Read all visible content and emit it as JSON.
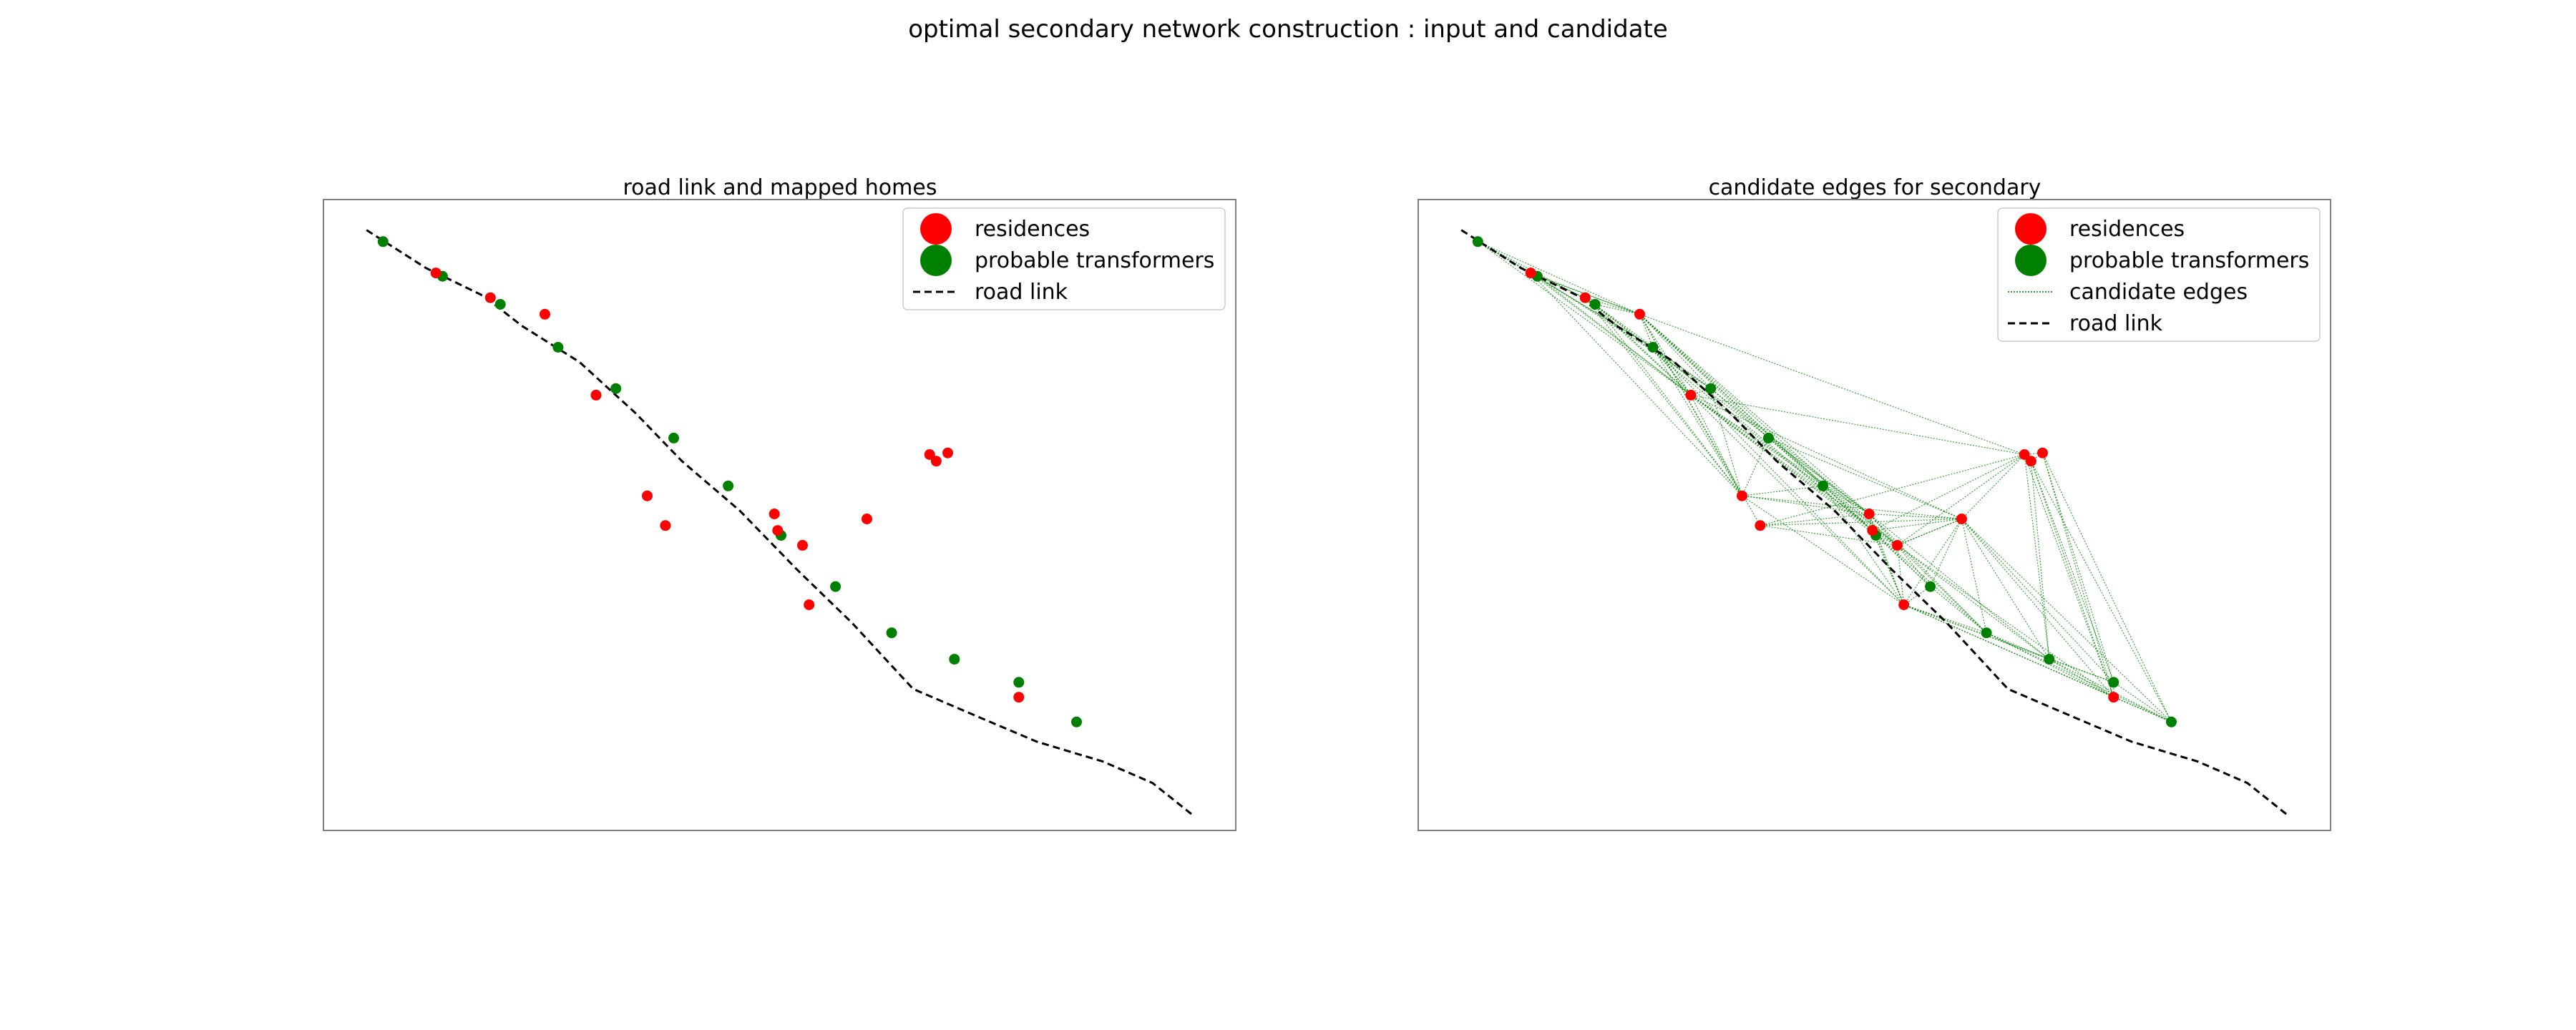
{
  "figure": {
    "suptitle": "optimal secondary network construction : input and candidate"
  },
  "colors": {
    "residence": "#ff0000",
    "transformer": "#008000",
    "road": "#000000",
    "candidate_edge": "#008000",
    "axes_frame": "#808080"
  },
  "chart_data": [
    {
      "type": "scatter",
      "title": "road link and mapped homes",
      "xlabel": "",
      "ylabel": "",
      "grid": false,
      "legend_position": "top-right",
      "legend": [
        "residences",
        "probable transformers",
        "road link"
      ],
      "series": [
        {
          "name": "residences",
          "kind": "points",
          "ref": "residences"
        },
        {
          "name": "probable transformers",
          "kind": "points",
          "ref": "transformers"
        },
        {
          "name": "road link",
          "kind": "dashed-line",
          "ref": "road"
        }
      ]
    },
    {
      "type": "scatter",
      "title": "candidate edges for secondary",
      "xlabel": "",
      "ylabel": "",
      "grid": false,
      "legend_position": "top-right",
      "legend": [
        "residences",
        "probable transformers",
        "candidate edges",
        "road link"
      ],
      "series": [
        {
          "name": "residences",
          "kind": "points",
          "ref": "residences"
        },
        {
          "name": "probable transformers",
          "kind": "points",
          "ref": "transformers"
        },
        {
          "name": "candidate edges",
          "kind": "dotted-lines",
          "ref": "edges"
        },
        {
          "name": "road link",
          "kind": "dashed-line",
          "ref": "road"
        }
      ]
    }
  ],
  "data_points": {
    "road": [
      [
        4,
        2
      ],
      [
        40,
        25
      ],
      [
        75,
        42
      ],
      [
        98,
        60
      ],
      [
        133,
        82
      ],
      [
        167,
        113
      ],
      [
        195,
        142
      ],
      [
        230,
        172
      ],
      [
        265,
        208
      ],
      [
        298,
        240
      ],
      [
        335,
        280
      ],
      [
        370,
        295
      ],
      [
        410,
        312
      ],
      [
        450,
        324
      ],
      [
        480,
        337
      ],
      [
        505,
        357
      ]
    ],
    "transformers": [
      [
        14,
        9
      ],
      [
        50,
        30
      ],
      [
        85,
        47
      ],
      [
        120,
        73
      ],
      [
        155,
        98
      ],
      [
        190,
        128
      ],
      [
        223,
        157
      ],
      [
        255,
        187
      ],
      [
        288,
        218
      ],
      [
        322,
        246
      ],
      [
        360,
        262
      ],
      [
        399,
        276
      ],
      [
        434,
        300
      ]
    ],
    "residences": [
      [
        46,
        28
      ],
      [
        79,
        43
      ],
      [
        112,
        53
      ],
      [
        143,
        102
      ],
      [
        174,
        163
      ],
      [
        185,
        181
      ],
      [
        251,
        174
      ],
      [
        253,
        184
      ],
      [
        268,
        193
      ],
      [
        272,
        229
      ],
      [
        307,
        177
      ],
      [
        345,
        138
      ],
      [
        349,
        142
      ],
      [
        356,
        137
      ],
      [
        399,
        285
      ]
    ],
    "edges": [
      [
        14,
        9,
        112,
        53
      ],
      [
        14,
        9,
        143,
        102
      ],
      [
        14,
        9,
        50,
        30
      ],
      [
        14,
        9,
        46,
        28
      ],
      [
        50,
        30,
        112,
        53
      ],
      [
        46,
        28,
        112,
        53
      ],
      [
        79,
        43,
        112,
        53
      ],
      [
        85,
        47,
        112,
        53
      ],
      [
        112,
        53,
        120,
        73
      ],
      [
        112,
        53,
        155,
        98
      ],
      [
        112,
        53,
        143,
        102
      ],
      [
        112,
        53,
        251,
        174
      ],
      [
        112,
        53,
        253,
        184
      ],
      [
        112,
        53,
        268,
        193
      ],
      [
        112,
        53,
        345,
        138
      ],
      [
        112,
        53,
        174,
        163
      ],
      [
        112,
        53,
        223,
        157
      ],
      [
        46,
        28,
        174,
        163
      ],
      [
        46,
        28,
        143,
        102
      ],
      [
        50,
        30,
        143,
        102
      ],
      [
        79,
        43,
        251,
        174
      ],
      [
        79,
        43,
        143,
        102
      ],
      [
        85,
        47,
        143,
        102
      ],
      [
        85,
        47,
        253,
        184
      ],
      [
        120,
        73,
        174,
        163
      ],
      [
        120,
        73,
        143,
        102
      ],
      [
        143,
        102,
        251,
        174
      ],
      [
        143,
        102,
        253,
        184
      ],
      [
        143,
        102,
        268,
        193
      ],
      [
        143,
        102,
        174,
        163
      ],
      [
        143,
        102,
        223,
        157
      ],
      [
        155,
        98,
        251,
        174
      ],
      [
        155,
        98,
        174,
        163
      ],
      [
        143,
        102,
        272,
        229
      ],
      [
        120,
        73,
        272,
        229
      ],
      [
        143,
        102,
        255,
        187
      ],
      [
        143,
        102,
        345,
        138
      ],
      [
        143,
        102,
        307,
        177
      ],
      [
        174,
        163,
        272,
        229
      ],
      [
        174,
        163,
        251,
        174
      ],
      [
        174,
        163,
        307,
        177
      ],
      [
        174,
        163,
        223,
        157
      ],
      [
        174,
        163,
        190,
        128
      ],
      [
        185,
        181,
        251,
        174
      ],
      [
        185,
        181,
        268,
        193
      ],
      [
        185,
        181,
        307,
        177
      ],
      [
        185,
        181,
        345,
        138
      ],
      [
        190,
        128,
        251,
        174
      ],
      [
        190,
        128,
        268,
        193
      ],
      [
        190,
        128,
        307,
        177
      ],
      [
        190,
        128,
        223,
        157
      ],
      [
        223,
        157,
        251,
        174
      ],
      [
        223,
        157,
        253,
        184
      ],
      [
        223,
        157,
        268,
        193
      ],
      [
        223,
        157,
        272,
        229
      ],
      [
        251,
        174,
        253,
        184
      ],
      [
        251,
        174,
        268,
        193
      ],
      [
        251,
        174,
        307,
        177
      ],
      [
        251,
        174,
        272,
        229
      ],
      [
        251,
        174,
        322,
        246
      ],
      [
        251,
        174,
        360,
        262
      ],
      [
        253,
        184,
        255,
        187
      ],
      [
        253,
        184,
        268,
        193
      ],
      [
        253,
        184,
        272,
        229
      ],
      [
        253,
        184,
        288,
        218
      ],
      [
        253,
        184,
        322,
        246
      ],
      [
        253,
        184,
        307,
        177
      ],
      [
        255,
        187,
        268,
        193
      ],
      [
        255,
        187,
        272,
        229
      ],
      [
        255,
        187,
        288,
        218
      ],
      [
        268,
        193,
        307,
        177
      ],
      [
        268,
        193,
        272,
        229
      ],
      [
        268,
        193,
        288,
        218
      ],
      [
        268,
        193,
        322,
        246
      ],
      [
        268,
        193,
        360,
        262
      ],
      [
        268,
        193,
        399,
        285
      ],
      [
        272,
        229,
        288,
        218
      ],
      [
        272,
        229,
        322,
        246
      ],
      [
        272,
        229,
        360,
        262
      ],
      [
        272,
        229,
        399,
        285
      ],
      [
        272,
        229,
        307,
        177
      ],
      [
        272,
        229,
        399,
        276
      ],
      [
        288,
        218,
        322,
        246
      ],
      [
        288,
        218,
        307,
        177
      ],
      [
        307,
        177,
        322,
        246
      ],
      [
        307,
        177,
        360,
        262
      ],
      [
        307,
        177,
        399,
        285
      ],
      [
        307,
        177,
        399,
        276
      ],
      [
        307,
        177,
        345,
        138
      ],
      [
        307,
        177,
        268,
        193
      ],
      [
        307,
        177,
        434,
        300
      ],
      [
        345,
        138,
        349,
        142
      ],
      [
        345,
        138,
        356,
        137
      ],
      [
        345,
        138,
        360,
        262
      ],
      [
        345,
        138,
        399,
        285
      ],
      [
        349,
        142,
        356,
        137
      ],
      [
        349,
        142,
        360,
        262
      ],
      [
        349,
        142,
        399,
        285
      ],
      [
        349,
        142,
        434,
        300
      ],
      [
        349,
        142,
        399,
        276
      ],
      [
        356,
        137,
        399,
        285
      ],
      [
        356,
        137,
        434,
        300
      ],
      [
        356,
        137,
        399,
        276
      ],
      [
        253,
        184,
        345,
        138
      ],
      [
        268,
        193,
        345,
        138
      ],
      [
        322,
        246,
        360,
        262
      ],
      [
        322,
        246,
        399,
        285
      ],
      [
        360,
        262,
        399,
        285
      ],
      [
        360,
        262,
        399,
        276
      ],
      [
        399,
        276,
        399,
        285
      ],
      [
        399,
        285,
        434,
        300
      ],
      [
        399,
        276,
        434,
        300
      ],
      [
        360,
        262,
        434,
        300
      ],
      [
        272,
        229,
        434,
        300
      ],
      [
        322,
        246,
        434,
        300
      ],
      [
        46,
        28,
        50,
        30
      ],
      [
        46,
        28,
        79,
        43
      ],
      [
        79,
        43,
        85,
        47
      ],
      [
        120,
        73,
        155,
        98
      ],
      [
        155,
        98,
        190,
        128
      ],
      [
        143,
        102,
        155,
        98
      ],
      [
        143,
        102,
        120,
        73
      ],
      [
        46,
        28,
        120,
        73
      ],
      [
        79,
        43,
        155,
        98
      ],
      [
        85,
        47,
        174,
        163
      ],
      [
        120,
        73,
        253,
        184
      ],
      [
        79,
        43,
        174,
        163
      ],
      [
        50,
        30,
        155,
        98
      ],
      [
        14,
        9,
        120,
        73
      ],
      [
        14,
        9,
        85,
        47
      ],
      [
        112,
        53,
        190,
        128
      ],
      [
        112,
        53,
        185,
        181
      ]
    ]
  }
}
